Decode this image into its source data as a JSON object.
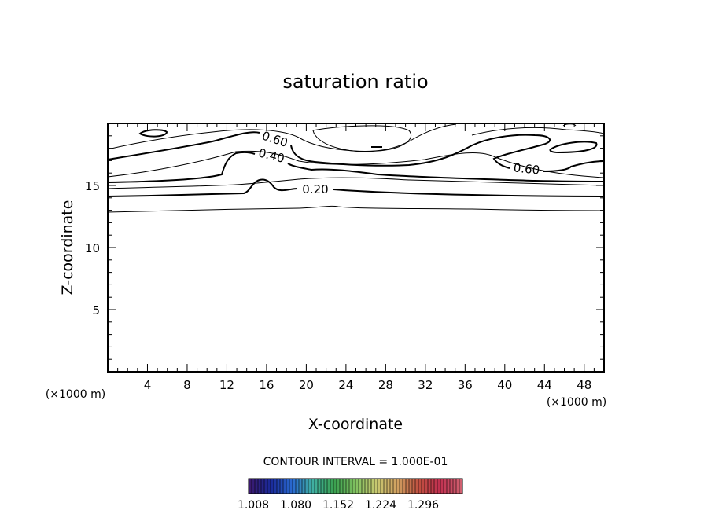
{
  "chart_data": {
    "type": "contour",
    "title": "saturation ratio",
    "xlabel": "X-coordinate",
    "ylabel": "Z-coordinate",
    "x_unit": "(×1000 m)",
    "y_unit": "(×1000 m)",
    "xlim": [
      0,
      50
    ],
    "ylim": [
      0,
      20
    ],
    "x_ticks": [
      "4",
      "8",
      "12",
      "16",
      "20",
      "24",
      "28",
      "32",
      "36",
      "40",
      "44",
      "48"
    ],
    "y_ticks": [
      "5",
      "10",
      "15"
    ],
    "contour_interval_text": "CONTOUR INTERVAL = 1.000E-01",
    "contour_labels": [
      "0.60",
      "0.40",
      "0.20",
      "0.60"
    ],
    "colorbar_labels": [
      "1.008",
      "1.080",
      "1.152",
      "1.224",
      "1.296"
    ],
    "colorbar_colors": [
      "#3a1a6e",
      "#1a2a9a",
      "#2a6ad0",
      "#40b0a0",
      "#3aa050",
      "#80c060",
      "#c8c870",
      "#d0a060",
      "#c05040",
      "#c03050",
      "#d06070"
    ]
  }
}
